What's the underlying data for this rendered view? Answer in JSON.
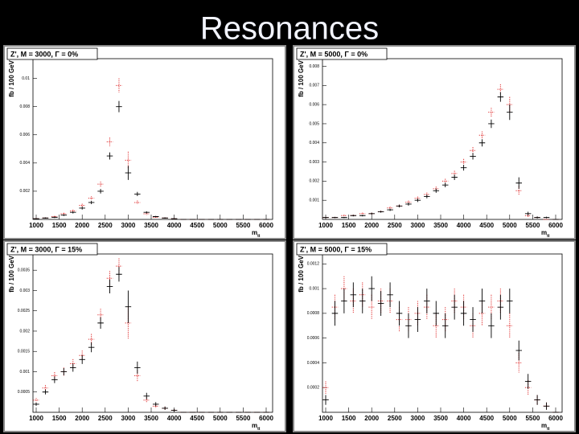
{
  "title": "Resonances",
  "chart_data": [
    {
      "type": "histogram-points",
      "title": "Z', M = 3000, Γ = 0%",
      "ylabel": "fb / 100 GeV",
      "xlabel": "m",
      "xlabel_sub": "tt",
      "xlim": [
        930,
        6140
      ],
      "xticks": [
        1000,
        1500,
        2000,
        2500,
        3000,
        3500,
        4000,
        4500,
        5000,
        5500,
        6000
      ],
      "ylim": [
        0,
        0.0114
      ],
      "yticks": [
        0.002,
        0.004,
        0.006,
        0.008,
        0.01
      ],
      "x": [
        1000,
        1200,
        1400,
        1600,
        1800,
        2000,
        2200,
        2400,
        2600,
        2800,
        3000,
        3200,
        3400,
        3600,
        3800,
        4000,
        4200,
        4400,
        4600,
        4800,
        5000,
        5200,
        5400,
        5600,
        5800,
        6000
      ],
      "series": [
        {
          "color": "#e03030",
          "style": "dotted",
          "values": [
            6e-05,
            0.0001,
            0.0002,
            0.0004,
            0.0006,
            0.001,
            0.0015,
            0.0025,
            0.0055,
            0.0095,
            0.0042,
            0.0012,
            0.0004,
            0.00015,
            0.0001,
            5e-05,
            0,
            0,
            0,
            0,
            0,
            0,
            0,
            0,
            0,
            0
          ],
          "errors": [
            3e-05,
            4e-05,
            5e-05,
            7e-05,
            9e-05,
            0.00011,
            0.00014,
            0.00018,
            0.0003,
            0.0005,
            0.0006,
            0.00014,
            8e-05,
            5e-05,
            4e-05,
            3e-05,
            0,
            0,
            0,
            0,
            0,
            0,
            0,
            0,
            0,
            0
          ]
        },
        {
          "color": "#000000",
          "style": "solid",
          "values": [
            5e-05,
            0.0001,
            0.00015,
            0.0003,
            0.0005,
            0.0008,
            0.0012,
            0.002,
            0.0045,
            0.008,
            0.0033,
            0.0018,
            0.0005,
            0.0002,
            0.0001,
            5e-05,
            0,
            0,
            0,
            0,
            0,
            0,
            0,
            0,
            0,
            0
          ],
          "errors": [
            3e-05,
            4e-05,
            5e-05,
            6e-05,
            8e-05,
            0.0001,
            0.00012,
            0.00016,
            0.00025,
            0.0004,
            0.0005,
            0.00015,
            8e-05,
            5e-05,
            4e-05,
            3e-05,
            0,
            0,
            0,
            0,
            0,
            0,
            0,
            0,
            0,
            0
          ]
        }
      ]
    },
    {
      "type": "histogram-points",
      "title": "Z', M = 5000, Γ = 0%",
      "ylabel": "fb / 100 GeV",
      "xlabel": "m",
      "xlabel_sub": "tt",
      "xlim": [
        930,
        6140
      ],
      "xticks": [
        1000,
        1500,
        2000,
        2500,
        3000,
        3500,
        4000,
        4500,
        5000,
        5500,
        6000
      ],
      "ylim": [
        0,
        0.0084
      ],
      "yticks": [
        0.001,
        0.002,
        0.003,
        0.004,
        0.005,
        0.006,
        0.007,
        0.008
      ],
      "x": [
        1000,
        1200,
        1400,
        1600,
        1800,
        2000,
        2200,
        2400,
        2600,
        2800,
        3000,
        3200,
        3400,
        3600,
        3800,
        4000,
        4200,
        4400,
        4600,
        4800,
        5000,
        5200,
        5400,
        5600,
        5800,
        6000
      ],
      "series": [
        {
          "color": "#e03030",
          "style": "dotted",
          "values": [
            0.0001,
            0.0001,
            0.0002,
            0.0002,
            0.0003,
            0.0003,
            0.0004,
            0.0006,
            0.0007,
            0.0009,
            0.0011,
            0.0013,
            0.0016,
            0.002,
            0.0024,
            0.003,
            0.0036,
            0.0044,
            0.0056,
            0.0068,
            0.006,
            0.0015,
            0.0002,
            0.0001,
            0,
            0
          ],
          "errors": [
            3e-05,
            3e-05,
            4e-05,
            4e-05,
            5e-05,
            5e-05,
            5e-05,
            6e-05,
            7e-05,
            8e-05,
            9e-05,
            0.0001,
            0.00011,
            0.00012,
            0.00014,
            0.00016,
            0.00018,
            0.0002,
            0.00023,
            0.00026,
            0.0004,
            0.00025,
            8e-05,
            4e-05,
            0,
            0
          ]
        },
        {
          "color": "#000000",
          "style": "solid",
          "values": [
            0.0001,
            0.0001,
            0.0001,
            0.0002,
            0.0002,
            0.0003,
            0.0004,
            0.0005,
            0.0007,
            0.0008,
            0.001,
            0.0012,
            0.0015,
            0.0018,
            0.0022,
            0.0027,
            0.0033,
            0.004,
            0.005,
            0.0064,
            0.0056,
            0.0019,
            0.0003,
            0.0001,
            0.0001,
            0
          ],
          "errors": [
            3e-05,
            3e-05,
            3e-05,
            4e-05,
            4e-05,
            5e-05,
            5e-05,
            6e-05,
            7e-05,
            8e-05,
            9e-05,
            0.0001,
            0.00011,
            0.00012,
            0.00014,
            0.00015,
            0.00017,
            0.00019,
            0.00022,
            0.00025,
            0.0004,
            0.0003,
            0.0001,
            5e-05,
            4e-05,
            0
          ]
        }
      ]
    },
    {
      "type": "histogram-points",
      "title": "Z', M = 3000, Γ = 15%",
      "ylabel": "fb / 100 GeV",
      "xlabel": "m",
      "xlabel_sub": "tt",
      "xlim": [
        930,
        6140
      ],
      "xticks": [
        1000,
        1500,
        2000,
        2500,
        3000,
        3500,
        4000,
        4500,
        5000,
        5500,
        6000
      ],
      "ylim": [
        0,
        0.0039
      ],
      "yticks": [
        0.0005,
        0.001,
        0.0015,
        0.002,
        0.0025,
        0.003,
        0.0035
      ],
      "x": [
        1000,
        1200,
        1400,
        1600,
        1800,
        2000,
        2200,
        2400,
        2600,
        2800,
        3000,
        3200,
        3400,
        3600,
        3800,
        4000,
        4200,
        4400,
        4600,
        4800,
        5000,
        5200,
        5400,
        5600,
        5800,
        6000
      ],
      "series": [
        {
          "color": "#e03030",
          "style": "dotted",
          "values": [
            0.0003,
            0.0006,
            0.0009,
            0.001,
            0.0012,
            0.0014,
            0.0018,
            0.0024,
            0.0033,
            0.0036,
            0.0022,
            0.0009,
            0.0003,
            0.00015,
            0.0001,
            5e-05,
            0,
            0,
            0,
            0,
            0,
            0,
            0,
            0,
            0,
            0
          ],
          "errors": [
            5e-05,
            7e-05,
            9e-05,
            0.0001,
            0.00011,
            0.00012,
            0.00013,
            0.00015,
            0.00018,
            0.00019,
            0.0004,
            0.00013,
            7e-05,
            5e-05,
            4e-05,
            3e-05,
            0,
            0,
            0,
            0,
            0,
            0,
            0,
            0,
            0,
            0
          ]
        },
        {
          "color": "#000000",
          "style": "solid",
          "values": [
            0.0002,
            0.0005,
            0.0008,
            0.001,
            0.0011,
            0.0013,
            0.0016,
            0.0022,
            0.0031,
            0.0034,
            0.0026,
            0.0011,
            0.0004,
            0.0002,
            0.0001,
            5e-05,
            0,
            0,
            0,
            0,
            0,
            0,
            0,
            0,
            0,
            0
          ],
          "errors": [
            4e-05,
            6e-05,
            8e-05,
            9e-05,
            0.0001,
            0.00011,
            0.00012,
            0.00014,
            0.00017,
            0.00018,
            0.0004,
            0.00015,
            8e-05,
            5e-05,
            4e-05,
            3e-05,
            0,
            0,
            0,
            0,
            0,
            0,
            0,
            0,
            0,
            0
          ]
        }
      ]
    },
    {
      "type": "histogram-points",
      "title": "Z', M = 5000, Γ = 15%",
      "ylabel": "fb / 100 GeV",
      "xlabel": "m",
      "xlabel_sub": "tt",
      "xlim": [
        930,
        6140
      ],
      "xticks": [
        1000,
        1500,
        2000,
        2500,
        3000,
        3500,
        4000,
        4500,
        5000,
        5500,
        6000
      ],
      "ylim": [
        0,
        0.00128
      ],
      "yticks": [
        0.0002,
        0.0004,
        0.0006,
        0.0008,
        0.001,
        0.0012
      ],
      "x": [
        1000,
        1200,
        1400,
        1600,
        1800,
        2000,
        2200,
        2400,
        2600,
        2800,
        3000,
        3200,
        3400,
        3600,
        3800,
        4000,
        4200,
        4400,
        4600,
        4800,
        5000,
        5200,
        5400,
        5600,
        5800,
        6000
      ],
      "series": [
        {
          "color": "#e03030",
          "style": "dotted",
          "values": [
            0.0002,
            0.00085,
            0.001,
            0.0009,
            0.00095,
            0.00085,
            0.0009,
            0.0009,
            0.00075,
            0.00075,
            0.0008,
            0.00085,
            0.0007,
            0.00075,
            0.0009,
            0.00085,
            0.0007,
            0.0008,
            0.00085,
            0.0009,
            0.0007,
            0.0004,
            0.0002,
            0.0001,
            5e-05,
            0
          ],
          "errors": [
            5e-05,
            0.0001,
            0.0001,
            0.0001,
            0.0001,
            0.0001,
            0.0001,
            0.0001,
            0.0001,
            0.0001,
            0.0001,
            0.0001,
            0.0001,
            0.0001,
            0.0001,
            0.0001,
            0.0001,
            0.0001,
            0.0001,
            0.0001,
            0.0001,
            8e-05,
            6e-05,
            4e-05,
            3e-05,
            0
          ]
        },
        {
          "color": "#000000",
          "style": "solid",
          "values": [
            0.0001,
            0.0008,
            0.0009,
            0.00095,
            0.0009,
            0.001,
            0.00088,
            0.00095,
            0.0008,
            0.0007,
            0.00075,
            0.0009,
            0.0008,
            0.0007,
            0.00085,
            0.0008,
            0.00075,
            0.0009,
            0.0007,
            0.00085,
            0.0009,
            0.0005,
            0.00025,
            0.0001,
            5e-05,
            0
          ],
          "errors": [
            4e-05,
            0.0001,
            0.0001,
            0.0001,
            0.0001,
            0.0001,
            0.0001,
            0.0001,
            0.0001,
            0.0001,
            0.0001,
            0.0001,
            0.0001,
            0.0001,
            0.0001,
            0.0001,
            0.0001,
            0.0001,
            0.0001,
            0.0001,
            0.0001,
            8e-05,
            6e-05,
            4e-05,
            3e-05,
            0
          ]
        }
      ]
    }
  ]
}
